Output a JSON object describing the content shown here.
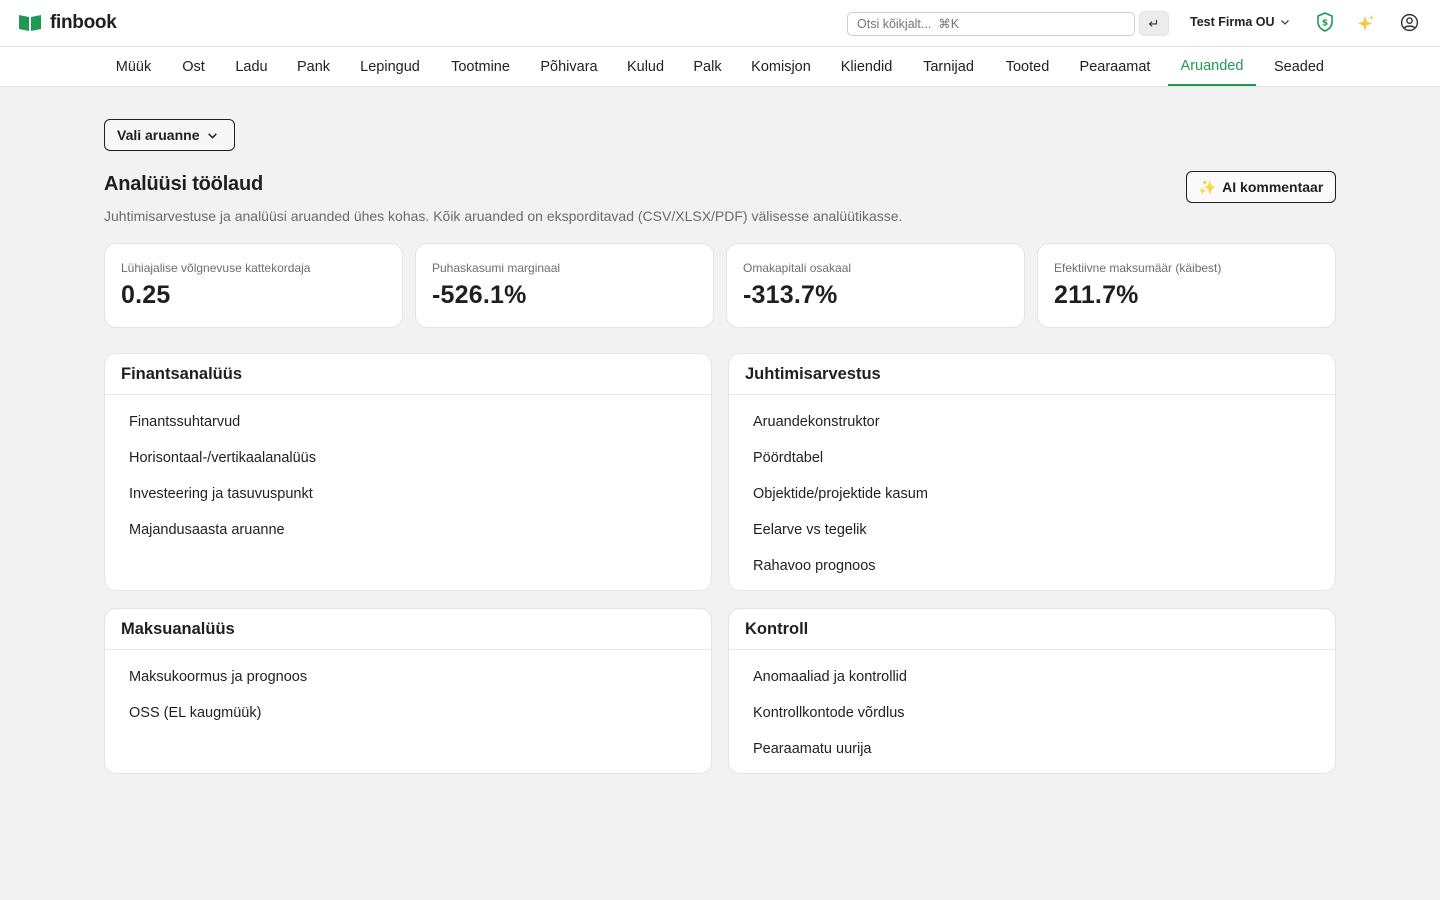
{
  "app": {
    "name": "finbook",
    "brand_color": "#1f9a55"
  },
  "topbar": {
    "search_placeholder": "Otsi kõikjalt...  ⌘K",
    "enter_glyph": "↵",
    "company": "Test Firma OU",
    "icons": [
      "shield-dollar-icon",
      "sparkle-icon",
      "user-circle-icon"
    ]
  },
  "nav": {
    "items": [
      "Müük",
      "Ost",
      "Ladu",
      "Pank",
      "Lepingud",
      "Tootmine",
      "Põhivara",
      "Kulud",
      "Palk",
      "Komisjon",
      "Kliendid",
      "Tarnijad",
      "Tooted",
      "Pearaamat",
      "Aruanded",
      "Seaded"
    ],
    "active": "Aruanded"
  },
  "main": {
    "select_label": "Vali aruanne",
    "title": "Analüüsi töölaud",
    "subtitle": "Juhtimisarvestuse ja analüüsi aruanded ühes kohas. Kõik aruanded on eksporditavad (CSV/XLSX/PDF) välisesse analüütikasse.",
    "ai_button": "AI kommentaar",
    "ai_button_icon": "✨"
  },
  "kpis": [
    {
      "label": "Lühiajalise võlgnevuse kattekordaja",
      "value": "0.25"
    },
    {
      "label": "Puhaskasumi marginaal",
      "value": "-526.1%"
    },
    {
      "label": "Omakapitali osakaal",
      "value": "-313.7%"
    },
    {
      "label": "Efektiivne maksumäär (käibest)",
      "value": "211.7%"
    }
  ],
  "cards": {
    "financial": {
      "title": "Finantsanalüüs",
      "links": [
        "Finantssuhtarvud",
        "Horisontaal-/vertikaalanalüüs",
        "Investeering ja tasuvuspunkt",
        "Majandusaasta aruanne"
      ]
    },
    "management": {
      "title": "Juhtimisarvestus",
      "links": [
        "Aruandekonstruktor",
        "Pöördtabel",
        "Objektide/projektide kasum",
        "Eelarve vs tegelik",
        "Rahavoo prognoos"
      ]
    },
    "tax": {
      "title": "Maksuanalüüs",
      "links": [
        "Maksukoormus ja prognoos",
        "OSS (EL kaugmüük)"
      ]
    },
    "control": {
      "title": "Kontroll",
      "links": [
        "Anomaaliad ja kontrollid",
        "Kontrollkontode võrdlus",
        "Pearaamatu uurija"
      ]
    }
  }
}
